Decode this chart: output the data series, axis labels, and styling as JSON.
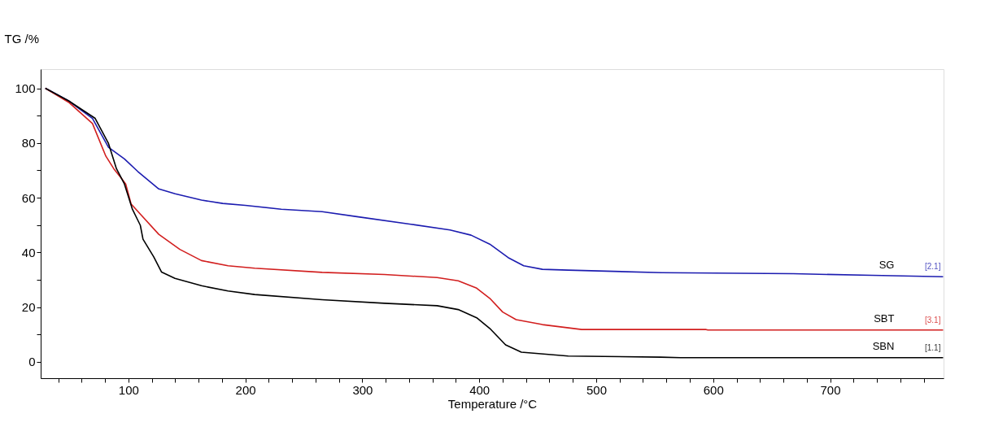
{
  "chart_data": {
    "type": "line",
    "xlabel": "Temperature /°C",
    "ylabel": "TG /%",
    "xlim": [
      25,
      797
    ],
    "ylim": [
      -6,
      107
    ],
    "xticks": [
      {
        "value": 40,
        "label": null
      },
      {
        "value": 60,
        "label": null
      },
      {
        "value": 80,
        "label": null
      },
      100,
      {
        "value": 120,
        "label": null
      },
      {
        "value": 140,
        "label": null
      },
      {
        "value": 160,
        "label": null
      },
      {
        "value": 180,
        "label": null
      },
      200,
      {
        "value": 220,
        "label": null
      },
      {
        "value": 240,
        "label": null
      },
      {
        "value": 260,
        "label": null
      },
      {
        "value": 280,
        "label": null
      },
      300,
      {
        "value": 320,
        "label": null
      },
      {
        "value": 340,
        "label": null
      },
      {
        "value": 360,
        "label": null
      },
      {
        "value": 380,
        "label": null
      },
      400,
      {
        "value": 420,
        "label": null
      },
      {
        "value": 440,
        "label": null
      },
      {
        "value": 460,
        "label": null
      },
      {
        "value": 480,
        "label": null
      },
      500,
      {
        "value": 520,
        "label": null
      },
      {
        "value": 540,
        "label": null
      },
      {
        "value": 560,
        "label": null
      },
      {
        "value": 580,
        "label": null
      },
      600,
      {
        "value": 620,
        "label": null
      },
      {
        "value": 640,
        "label": null
      },
      {
        "value": 660,
        "label": null
      },
      {
        "value": 680,
        "label": null
      },
      700,
      {
        "value": 720,
        "label": null
      },
      {
        "value": 740,
        "label": null
      },
      {
        "value": 760,
        "label": null
      },
      {
        "value": 780,
        "label": null
      }
    ],
    "yticks": [
      0,
      {
        "value": 10,
        "label": null
      },
      20,
      {
        "value": 30,
        "label": null
      },
      40,
      {
        "value": 50,
        "label": null
      },
      60,
      {
        "value": 70,
        "label": null
      },
      80,
      {
        "value": 90,
        "label": null
      },
      100
    ],
    "grid": false,
    "legend": false,
    "marker": "none",
    "line_style": "solid",
    "series": [
      {
        "name": "SG",
        "color": "#1c1cb0",
        "x": [
          29,
          48.9,
          69.3,
          83,
          96.6,
          108,
          126,
          140,
          162.5,
          180.7,
          200,
          230.7,
          265.7,
          296.6,
          341.6,
          375,
          393,
          409,
          424.7,
          438,
          454,
          476,
          556,
          668.5,
          736,
          796.6
        ],
        "values": [
          100,
          95.4,
          89,
          78.4,
          74.2,
          69.6,
          63.2,
          61.4,
          59.1,
          57.9,
          57.2,
          55.8,
          54.9,
          53.0,
          50.3,
          48.2,
          46.3,
          43,
          38.1,
          35.1,
          33.8,
          33.5,
          32.6,
          32.2,
          31.6,
          31.1
        ]
      },
      {
        "name": "SBT",
        "color": "#d21e1e",
        "x": [
          29,
          48.9,
          69.3,
          80.7,
          87.5,
          94.3,
          97.7,
          102.3,
          110.2,
          126,
          144,
          162.5,
          185.2,
          208,
          265.7,
          319,
          364,
          382,
          397.8,
          409,
          420,
          431.5,
          454,
          487.6,
          594,
          595.5,
          796.6
        ],
        "values": [
          100,
          94.9,
          87.1,
          75.2,
          70.6,
          66.9,
          65.0,
          57.7,
          54.0,
          46.6,
          41.1,
          37.0,
          35.1,
          34.2,
          32.7,
          31.9,
          30.8,
          29.6,
          26.9,
          23.2,
          18.2,
          15.4,
          13.6,
          11.8,
          11.8,
          11.6,
          11.6
        ]
      },
      {
        "name": "SBN",
        "color": "#000000",
        "x": [
          29,
          48.9,
          71.6,
          83,
          89.8,
          96.6,
          103.4,
          110.2,
          112.5,
          121.6,
          128.4,
          139.8,
          162.5,
          185.2,
          208,
          265.7,
          319,
          364,
          382,
          397.8,
          409,
          422.5,
          436,
          476,
          555,
          572,
          796.6
        ],
        "values": [
          100,
          95.4,
          89,
          79.8,
          70.6,
          65.0,
          55.8,
          49.9,
          44.8,
          38.4,
          32.8,
          30.5,
          27.8,
          25.9,
          24.6,
          22.7,
          21.4,
          20.5,
          19.1,
          16.1,
          12.2,
          6.2,
          3.5,
          2.1,
          1.7,
          1.5,
          1.5
        ]
      }
    ],
    "annotations": [
      "[2.1]",
      "[3.1]",
      "[1.1]"
    ]
  }
}
